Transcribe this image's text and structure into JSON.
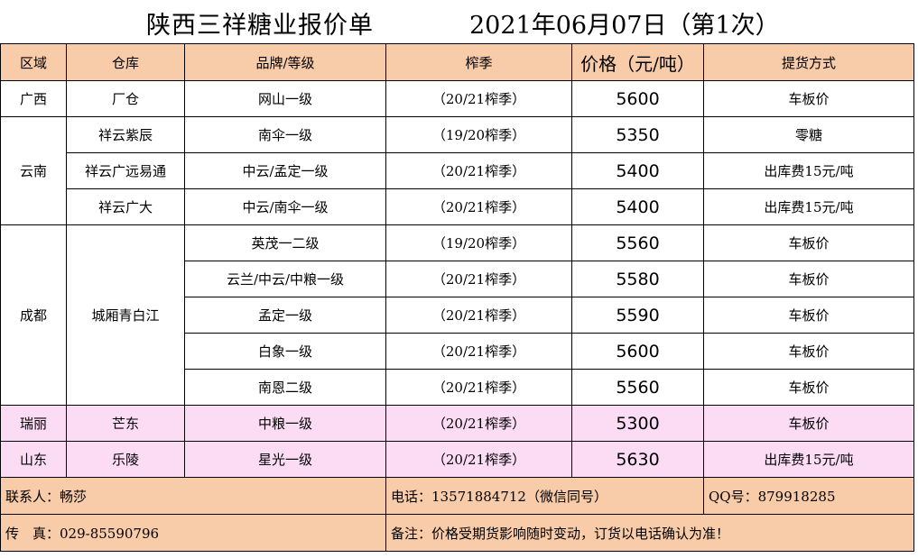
{
  "title": {
    "company": "陕西三祥糖业报价单",
    "date": "2021年06月07日（第1次）"
  },
  "headers": {
    "region": "区域",
    "warehouse": "仓库",
    "brand": "品牌/等级",
    "season": "榨季",
    "price": "价格（元/吨）",
    "delivery": "提货方式"
  },
  "rows": [
    {
      "region": "广西",
      "warehouse": "厂仓",
      "brand": "网山一级",
      "season": "（20/21榨季）",
      "price": "5600",
      "delivery": "车板价"
    },
    {
      "region": "云南",
      "warehouse": "祥云紫辰",
      "brand": "南伞一级",
      "season": "（19/20榨季）",
      "price": "5350",
      "delivery": "零糖"
    },
    {
      "region": "",
      "warehouse": "祥云广远易通",
      "brand": "中云/孟定一级",
      "season": "（20/21榨季）",
      "price": "5400",
      "delivery": "出库费15元/吨"
    },
    {
      "region": "",
      "warehouse": "祥云广大",
      "brand": "中云/南伞一级",
      "season": "（20/21榨季）",
      "price": "5400",
      "delivery": "出库费15元/吨"
    },
    {
      "region": "成都",
      "warehouse": "城厢青白江",
      "brand": "英茂一二级",
      "season": "（19/20榨季）",
      "price": "5560",
      "delivery": "车板价"
    },
    {
      "region": "",
      "warehouse": "",
      "brand": "云兰/中云/中粮一级",
      "season": "（20/21榨季）",
      "price": "5580",
      "delivery": "车板价"
    },
    {
      "region": "",
      "warehouse": "",
      "brand": "孟定一级",
      "season": "（20/21榨季）",
      "price": "5590",
      "delivery": "车板价"
    },
    {
      "region": "",
      "warehouse": "",
      "brand": "白象一级",
      "season": "（20/21榨季）",
      "price": "5600",
      "delivery": "车板价"
    },
    {
      "region": "",
      "warehouse": "",
      "brand": "南恩二级",
      "season": "（20/21榨季）",
      "price": "5560",
      "delivery": "车板价"
    },
    {
      "region": "瑞丽",
      "warehouse": "芒东",
      "brand": "中粮一级",
      "season": "（20/21榨季）",
      "price": "5300",
      "delivery": "车板价"
    },
    {
      "region": "山东",
      "warehouse": "乐陵",
      "brand": "星光一级",
      "season": "（20/21榨季）",
      "price": "5630",
      "delivery": "出库费15元/吨"
    }
  ],
  "footer": {
    "contact": "联系人：畅莎",
    "phone": "电话：13571884712（微信同号）",
    "qq": "QQ号：879918285",
    "fax": "传　真：029-85590796",
    "note": "备注：价格受期货影响随时变动，订货以电话确认为准！"
  },
  "colors": {
    "header_bg": "#f8cba9",
    "pink_row_bg": "#fcdcf5"
  }
}
